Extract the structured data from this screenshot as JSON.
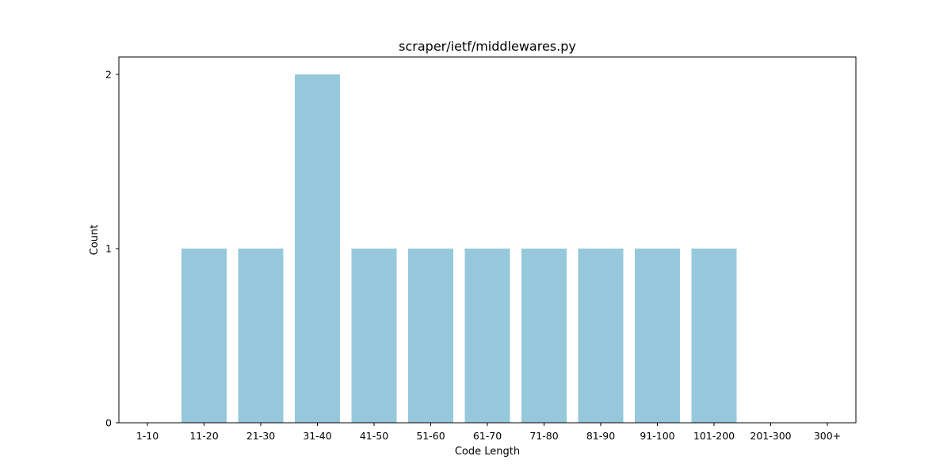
{
  "chart_data": {
    "type": "bar",
    "title": "scraper/ietf/middlewares.py",
    "xlabel": "Code Length",
    "ylabel": "Count",
    "categories": [
      "1-10",
      "11-20",
      "21-30",
      "31-40",
      "41-50",
      "51-60",
      "61-70",
      "71-80",
      "81-90",
      "91-100",
      "101-200",
      "201-300",
      "300+"
    ],
    "values": [
      0,
      1,
      1,
      2,
      1,
      1,
      1,
      1,
      1,
      1,
      1,
      0,
      0
    ],
    "ylim": [
      0,
      2.1
    ],
    "yticks": [
      0,
      1,
      2
    ],
    "bar_color": "#96c8dc",
    "grid": false
  }
}
